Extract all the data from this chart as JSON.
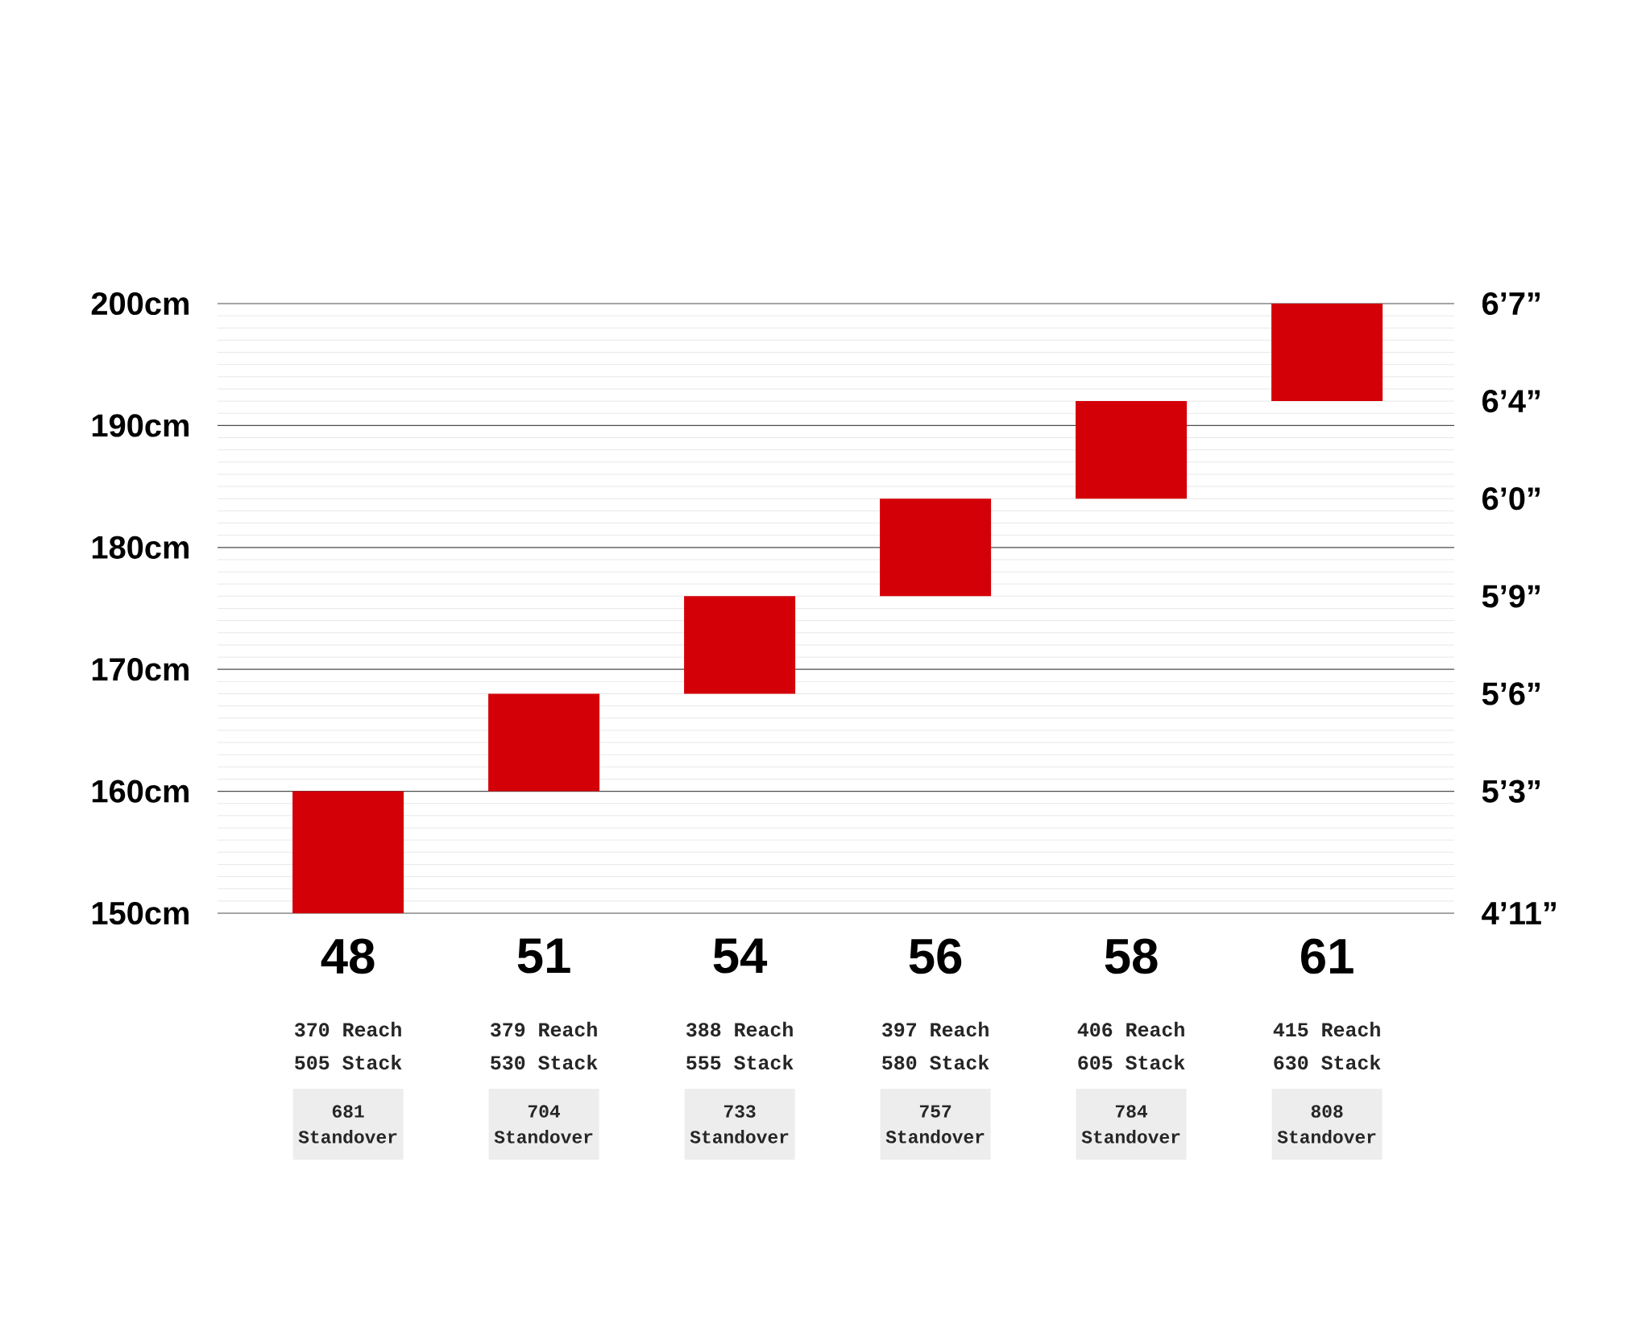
{
  "chart_data": {
    "type": "bar",
    "categories": [
      "48",
      "51",
      "54",
      "56",
      "58",
      "61"
    ],
    "base": [
      150,
      160,
      168,
      176,
      184,
      192
    ],
    "values": [
      10,
      8,
      8,
      8,
      8,
      8
    ],
    "color": "#d40008",
    "ylim": [
      150,
      200
    ],
    "yticks": [
      {
        "value": 150,
        "label": "150cm"
      },
      {
        "value": 160,
        "label": "160cm"
      },
      {
        "value": 170,
        "label": "170cm"
      },
      {
        "value": 180,
        "label": "180cm"
      },
      {
        "value": 190,
        "label": "190cm"
      },
      {
        "value": 200,
        "label": "200cm"
      }
    ],
    "grid": "y",
    "annotations": [
      "370 Reach",
      "505 Stack",
      "681 Standover",
      "379 Reach",
      "530 Stack",
      "704 Standover",
      "388 Reach",
      "555 Stack",
      "733 Standover",
      "397 Reach",
      "580 Stack",
      "757 Standover",
      "406 Reach",
      "605 Stack",
      "784 Standover",
      "415 Reach",
      "630 Stack",
      "808 Standover",
      "4’11”",
      "5’3”",
      "5’6”",
      "5’9”",
      "6’0”",
      "6’4”",
      "6’7”"
    ]
  }
}
